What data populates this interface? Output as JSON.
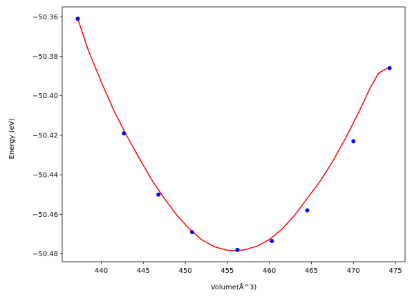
{
  "chart_data": {
    "type": "scatter",
    "xlabel": "Volume(Å^3)",
    "ylabel": "Energy (eV)",
    "xlim": [
      435.35,
      476.15
    ],
    "ylim": [
      -50.484,
      -50.355
    ],
    "x_ticks": [
      440,
      445,
      450,
      455,
      460,
      465,
      470,
      475
    ],
    "y_ticks": [
      -50.48,
      -50.46,
      -50.44,
      -50.42,
      -50.4,
      -50.38,
      -50.36
    ],
    "x_tick_labels": [
      "440",
      "445",
      "450",
      "455",
      "460",
      "465",
      "470",
      "475"
    ],
    "y_tick_labels": [
      "−50.48",
      "−50.46",
      "−50.44",
      "−50.42",
      "−50.40",
      "−50.38",
      "−50.36"
    ],
    "grid": false,
    "series": [
      {
        "kind": "scatter",
        "color": "#0000ff",
        "x": [
          437.2,
          442.7,
          446.8,
          450.8,
          456.2,
          460.3,
          464.5,
          470.0,
          474.3
        ],
        "y": [
          -50.361,
          -50.419,
          -50.45,
          -50.469,
          -50.478,
          -50.4735,
          -50.458,
          -50.423,
          -50.386
        ]
      },
      {
        "kind": "line",
        "color": "#ff0000",
        "x": [
          437.2,
          438.5,
          440.0,
          441.5,
          443.0,
          444.5,
          446.0,
          447.5,
          449.0,
          450.5,
          452.0,
          453.5,
          455.0,
          456.0,
          457.0,
          458.5,
          460.0,
          461.5,
          463.0,
          464.5,
          466.0,
          467.5,
          469.0,
          470.5,
          472.0,
          473.0,
          474.3
        ],
        "y": [
          -50.361,
          -50.3775,
          -50.393,
          -50.4075,
          -50.42,
          -50.4315,
          -50.4425,
          -50.452,
          -50.4605,
          -50.4675,
          -50.473,
          -50.4765,
          -50.4782,
          -50.4784,
          -50.478,
          -50.4762,
          -50.4728,
          -50.4675,
          -50.4605,
          -50.452,
          -50.4435,
          -50.4335,
          -50.422,
          -50.4095,
          -50.396,
          -50.3885,
          -50.3855
        ]
      }
    ]
  }
}
